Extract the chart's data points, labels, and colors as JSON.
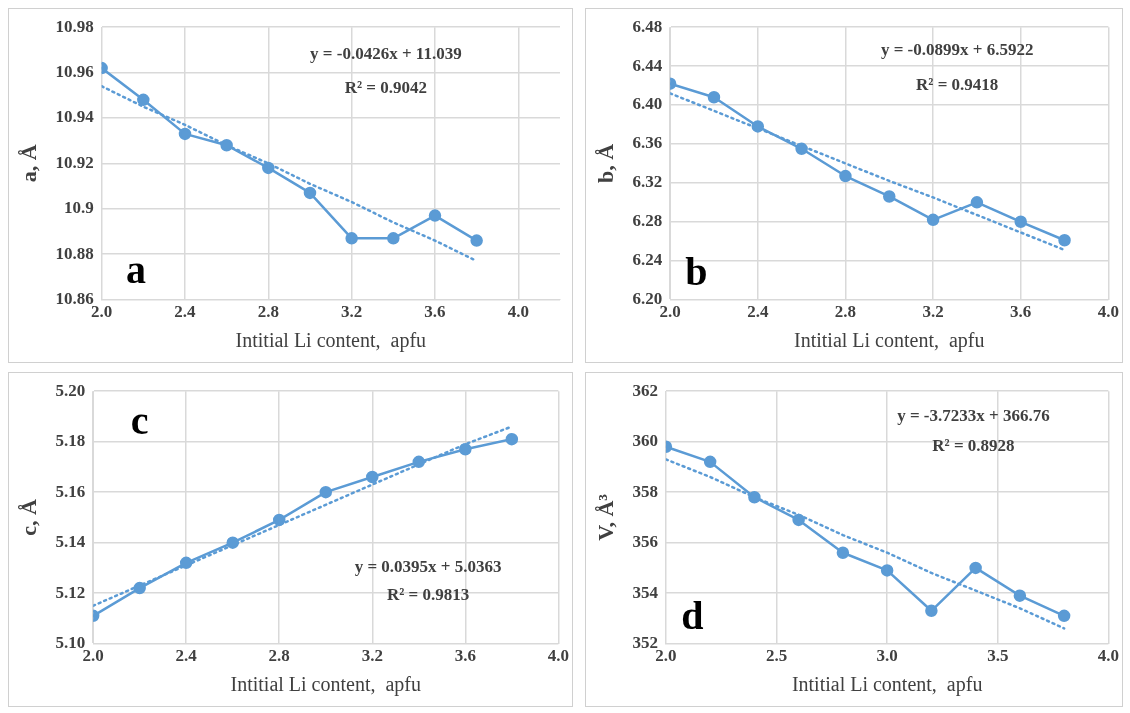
{
  "chart_data": [
    {
      "type": "line",
      "x": [
        2.0,
        2.2,
        2.4,
        2.6,
        2.8,
        3.0,
        3.2,
        3.4,
        3.6,
        3.8
      ],
      "xlabel": "Intitial Li content,  apfu",
      "ylabel": "a, Å",
      "grid": true,
      "legend": false,
      "marker": "circle",
      "series": [
        {
          "color": "#5b9bd5",
          "values": [
            10.962,
            10.948,
            10.933,
            10.928,
            10.918,
            10.907,
            10.887,
            10.887,
            10.897,
            10.886
          ]
        },
        {
          "type": "line",
          "color": "#5b9bd5",
          "values": [
            10.954,
            10.945,
            10.937,
            10.928,
            10.92,
            10.911,
            10.903,
            10.894,
            10.886,
            10.877
          ],
          "line_style": "dotted",
          "marker": "none"
        }
      ],
      "xlim": [
        2.0,
        4.2
      ],
      "xticks": [
        {
          "value": 2.0,
          "label": "2.0"
        },
        2.4,
        2.8,
        3.2,
        3.6,
        {
          "value": 4.0,
          "label": "4.0"
        }
      ],
      "ylim": [
        10.86,
        10.98
      ],
      "yticks": [
        10.86,
        10.88,
        10.9,
        10.92,
        10.94,
        10.96,
        10.98
      ],
      "annotations": [
        "a",
        "y = -0.0426x + 11.039",
        "R² = 0.9042"
      ]
    },
    {
      "type": "line",
      "x": [
        2.0,
        2.2,
        2.4,
        2.6,
        2.8,
        3.0,
        3.2,
        3.4,
        3.6,
        3.8
      ],
      "xlabel": "Intitial Li content,  apfu",
      "ylabel": "b, Å",
      "grid": true,
      "legend": false,
      "marker": "circle",
      "series": [
        {
          "color": "#5b9bd5",
          "values": [
            6.422,
            6.408,
            6.378,
            6.355,
            6.327,
            6.306,
            6.282,
            6.3,
            6.28,
            6.261
          ]
        },
        {
          "type": "line",
          "color": "#5b9bd5",
          "values": [
            6.412,
            6.394,
            6.376,
            6.358,
            6.34,
            6.322,
            6.305,
            6.287,
            6.269,
            6.251
          ],
          "line_style": "dotted",
          "marker": "none"
        }
      ],
      "xlim": [
        2.0,
        4.0
      ],
      "xticks": [
        {
          "value": 2.0,
          "label": "2.0"
        },
        2.4,
        2.8,
        3.2,
        3.6,
        {
          "value": 4.0,
          "label": "4.0"
        }
      ],
      "ylim": [
        6.2,
        6.48
      ],
      "yticks": [
        {
          "value": 6.2,
          "label": "6.20"
        },
        6.24,
        6.28,
        6.32,
        6.36,
        {
          "value": 6.4,
          "label": "6.40"
        },
        6.44,
        6.48
      ],
      "annotations": [
        "b",
        "y = -0.0899x + 6.5922",
        "R² = 0.9418"
      ]
    },
    {
      "type": "line",
      "x": [
        2.0,
        2.2,
        2.4,
        2.6,
        2.8,
        3.0,
        3.2,
        3.4,
        3.6,
        3.8
      ],
      "xlabel": "Intitial Li content,  apfu",
      "ylabel": "c, Å",
      "grid": true,
      "legend": false,
      "marker": "circle",
      "series": [
        {
          "color": "#5b9bd5",
          "values": [
            5.111,
            5.122,
            5.132,
            5.14,
            5.149,
            5.16,
            5.166,
            5.172,
            5.177,
            5.181
          ]
        },
        {
          "type": "line",
          "color": "#5b9bd5",
          "values": [
            5.115,
            5.123,
            5.131,
            5.139,
            5.147,
            5.155,
            5.163,
            5.171,
            5.179,
            5.186
          ],
          "line_style": "dotted",
          "marker": "none"
        }
      ],
      "xlim": [
        2.0,
        4.0
      ],
      "xticks": [
        {
          "value": 2.0,
          "label": "2.0"
        },
        2.4,
        2.8,
        3.2,
        3.6,
        {
          "value": 4.0,
          "label": "4.0"
        }
      ],
      "ylim": [
        5.1,
        5.2
      ],
      "yticks": [
        {
          "value": 5.1,
          "label": "5.10"
        },
        5.12,
        5.14,
        5.16,
        5.18,
        {
          "value": 5.2,
          "label": "5.20"
        }
      ],
      "annotations": [
        "c",
        "y = 0.0395x + 5.0363",
        "R² = 0.9813"
      ]
    },
    {
      "type": "line",
      "x": [
        2.0,
        2.2,
        2.4,
        2.6,
        2.8,
        3.0,
        3.2,
        3.4,
        3.6,
        3.8
      ],
      "xlabel": "Intitial Li content,  apfu",
      "ylabel": "V, Å³",
      "grid": true,
      "legend": false,
      "marker": "circle",
      "series": [
        {
          "color": "#5b9bd5",
          "values": [
            359.8,
            359.2,
            357.8,
            356.9,
            355.6,
            354.9,
            353.3,
            355.0,
            353.9,
            353.1
          ]
        },
        {
          "type": "line",
          "color": "#5b9bd5",
          "values": [
            359.3,
            358.6,
            357.8,
            357.1,
            356.3,
            355.6,
            354.8,
            354.1,
            353.4,
            352.6
          ],
          "line_style": "dotted",
          "marker": "none"
        }
      ],
      "xlim": [
        2.0,
        4.0
      ],
      "xticks": [
        {
          "value": 2.0,
          "label": "2.0"
        },
        2.5,
        {
          "value": 3.0,
          "label": "3.0"
        },
        3.5,
        {
          "value": 4.0,
          "label": "4.0"
        }
      ],
      "ylim": [
        352,
        362
      ],
      "yticks": [
        352,
        354,
        356,
        358,
        360,
        362
      ],
      "annotations": [
        "d",
        "y = -3.7233x + 366.76",
        "R² = 0.8928"
      ]
    }
  ]
}
